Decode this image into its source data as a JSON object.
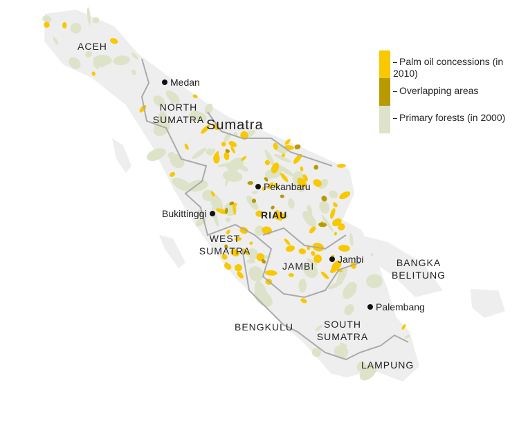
{
  "title": "Sumatra",
  "colors": {
    "palm_oil": "#F9C800",
    "overlap": "#B89A00",
    "forest": "#DDE3C8",
    "land": "#EEEEEE",
    "border": "#AAAAAA"
  },
  "legend": [
    {
      "label": "Palm oil concessions (in 2010)",
      "color": "#F9C800"
    },
    {
      "label": "Overlapping areas",
      "color": "#B89A00"
    },
    {
      "label": "Primary forests (in 2000)",
      "color": "#DDE3C8"
    }
  ],
  "provinces": [
    "ACEH",
    "NORTH SUMATRA",
    "RIAU",
    "WEST SUMATRA",
    "JAMBI",
    "BANGKA BELITUNG",
    "SOUTH SUMATRA",
    "BENGKULU",
    "LAMPUNG"
  ],
  "cities": [
    "Medan",
    "Pekanbaru",
    "Bukittinggi",
    "Jambi",
    "Palembang"
  ]
}
